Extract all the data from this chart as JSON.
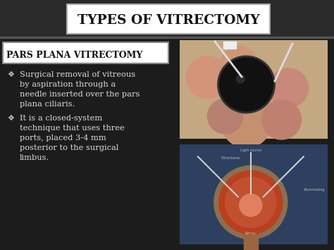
{
  "title": "TYPES OF VITRECTOMY",
  "subtitle_box": "PARS PLANA VITRECTOMY",
  "bullet1_diamond": "❖",
  "bullet1_line1": "Surgical removal of vitreous",
  "bullet1_line2": "by aspiration through a",
  "bullet1_line3": "needle inserted over the pars",
  "bullet1_line4": "plana ciliaris.",
  "bullet2_diamond": "❖",
  "bullet2_line1": "It is a closed-system",
  "bullet2_line2": "technique that uses three",
  "bullet2_line3": "ports, placed 3-4 mm",
  "bullet2_line4": "posterior to the surgical",
  "bullet2_line5": "limbus.",
  "bg_color": "#1a1a1a",
  "title_box_color": "#ffffff",
  "title_color": "#111111",
  "subtitle_box_color": "#ffffff",
  "subtitle_color": "#111111",
  "text_color": "#dddddd",
  "figsize": [
    4.74,
    3.55
  ],
  "dpi": 100
}
